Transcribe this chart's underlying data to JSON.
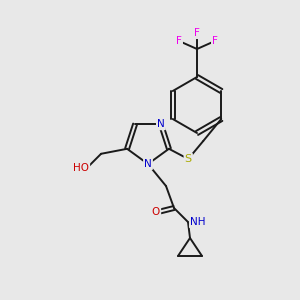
{
  "background_color": "#e8e8e8",
  "bond_color": "#1a1a1a",
  "colors": {
    "N": "#0000cc",
    "O": "#cc0000",
    "S": "#aaaa00",
    "F": "#ee00ee",
    "C": "#1a1a1a",
    "H_label": "#1a1a1a"
  },
  "font_size_atom": 7.5,
  "font_size_small": 6.5,
  "lw": 1.4
}
